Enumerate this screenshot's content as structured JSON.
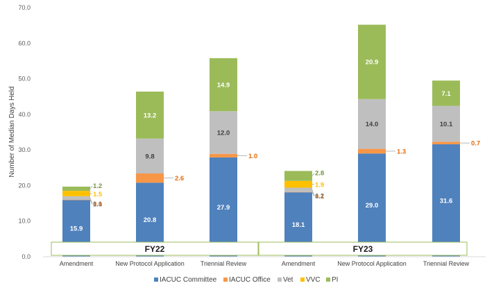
{
  "chart_data": {
    "type": "bar",
    "stacked": true,
    "title": "",
    "ylabel": "Number of Median Days Held",
    "xlabel": "",
    "ylim": [
      0,
      70
    ],
    "yticks": [
      "0.0",
      "10.0",
      "20.0",
      "30.0",
      "40.0",
      "50.0",
      "60.0",
      "70.0"
    ],
    "groups": [
      {
        "label": "FY22",
        "categories": [
          "Amendment",
          "New Protocol Application",
          "Triennial Review"
        ]
      },
      {
        "label": "FY23",
        "categories": [
          "Amendment",
          "New Protocol Application",
          "Triennial Review"
        ]
      }
    ],
    "categories": [
      "Amendment",
      "New Protocol Application",
      "Triennial Review",
      "Amendment",
      "New Protocol Application",
      "Triennial Review"
    ],
    "series": [
      {
        "name": "IACUC Committee",
        "color": "#4f81bd",
        "values": [
          15.9,
          20.8,
          27.9,
          18.1,
          29.0,
          31.6
        ],
        "labels": [
          "15.9",
          "20.8",
          "27.9",
          "18.1",
          "29.0",
          "31.6"
        ]
      },
      {
        "name": "IACUC Office",
        "color": "#f79646",
        "values": [
          0.1,
          2.6,
          1.0,
          0.1,
          1.3,
          0.7
        ],
        "labels": [
          "0.1",
          "2.6",
          "1.0",
          "0.1",
          "1.3",
          "0.7"
        ]
      },
      {
        "name": "Vet",
        "color": "#bfbfbf",
        "values": [
          1.0,
          9.8,
          12.0,
          1.2,
          14.0,
          10.1
        ],
        "labels": [
          "1.0",
          "9.8",
          "12.0",
          "1.2",
          "14.0",
          "10.1"
        ]
      },
      {
        "name": "VVC",
        "color": "#ffc000",
        "values": [
          1.5,
          0.0,
          0.0,
          1.9,
          0.0,
          0.0
        ],
        "labels": [
          "1.5",
          "",
          "",
          "1.9",
          "",
          ""
        ]
      },
      {
        "name": "PI",
        "color": "#9bbb59",
        "values": [
          1.2,
          13.2,
          14.9,
          2.8,
          20.9,
          7.1
        ],
        "labels": [
          "1.2",
          "13.2",
          "14.9",
          "2.8",
          "20.9",
          "7.1"
        ]
      }
    ],
    "legend": {
      "position": "bottom",
      "entries": [
        "IACUC Committee",
        "IACUC Office",
        "Vet",
        "VVC",
        "PI"
      ]
    },
    "grid": false
  }
}
